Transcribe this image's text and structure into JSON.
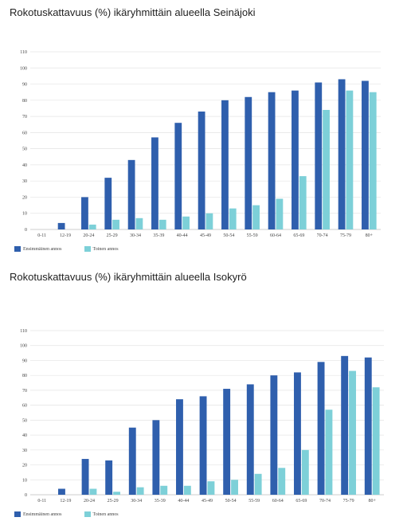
{
  "colors": {
    "first_dose": "#2f5fad",
    "second_dose": "#7dd0d8",
    "grid": "#e4e4e4",
    "axis": "#bbbbbb"
  },
  "charts": [
    {
      "title": "Rokotuskattavuus (%) ikäryhmittäin alueella Seinäjoki"
    },
    {
      "title": "Rokotuskattavuus (%) ikäryhmittäin alueella Isokyrö"
    }
  ],
  "chart_data": [
    {
      "type": "bar",
      "title": "Rokotuskattavuus (%) ikäryhmittäin alueella Seinäjoki",
      "categories": [
        "0-11",
        "12-19",
        "20-24",
        "25-29",
        "30-34",
        "35-39",
        "40-44",
        "45-49",
        "50-54",
        "55-59",
        "60-64",
        "65-69",
        "70-74",
        "75-79",
        "80+"
      ],
      "series": [
        {
          "name": "Ensimmäinen annos",
          "color": "#2f5fad",
          "values": [
            0,
            4,
            20,
            32,
            43,
            57,
            66,
            73,
            80,
            82,
            85,
            86,
            91,
            93,
            92
          ]
        },
        {
          "name": "Toinen annos",
          "color": "#7dd0d8",
          "values": [
            0,
            0,
            3,
            6,
            7,
            6,
            8,
            10,
            13,
            15,
            19,
            33,
            74,
            86,
            85
          ]
        }
      ],
      "ylim": [
        0,
        110
      ],
      "yticks": [
        0,
        10,
        20,
        30,
        40,
        50,
        60,
        70,
        80,
        90,
        100,
        110
      ],
      "grid": true,
      "legend": "bottom-left"
    },
    {
      "type": "bar",
      "title": "Rokotuskattavuus (%) ikäryhmittäin alueella Isokyrö",
      "categories": [
        "0-11",
        "12-19",
        "20-24",
        "25-29",
        "30-34",
        "35-39",
        "40-44",
        "45-49",
        "50-54",
        "55-59",
        "60-64",
        "65-69",
        "70-74",
        "75-79",
        "80+"
      ],
      "series": [
        {
          "name": "Ensimmäinen annos",
          "color": "#2f5fad",
          "values": [
            0,
            4,
            24,
            23,
            45,
            50,
            64,
            66,
            71,
            74,
            80,
            82,
            89,
            93,
            92
          ]
        },
        {
          "name": "Toinen annos",
          "color": "#7dd0d8",
          "values": [
            0,
            0,
            4,
            2,
            5,
            6,
            6,
            9,
            10,
            14,
            18,
            30,
            57,
            83,
            72
          ]
        }
      ],
      "ylim": [
        0,
        110
      ],
      "yticks": [
        0,
        10,
        20,
        30,
        40,
        50,
        60,
        70,
        80,
        90,
        100,
        110
      ],
      "grid": true,
      "legend": "bottom-left"
    }
  ]
}
